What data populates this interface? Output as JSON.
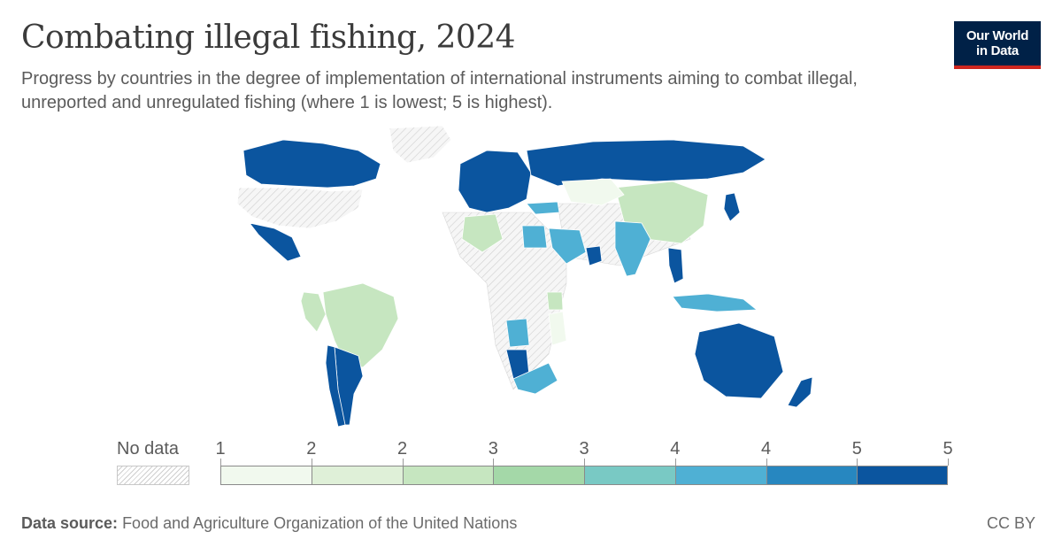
{
  "title": "Combating illegal fishing, 2024",
  "subtitle": "Progress by countries in the degree of implementation of international instruments aiming to combat illegal, unreported and unregulated fishing (where 1 is lowest; 5 is highest).",
  "logo": {
    "line1": "Our World",
    "line2": "in Data",
    "bg_color": "#002147",
    "accent_color": "#ce261e"
  },
  "legend": {
    "no_data_label": "No data",
    "tick_labels": [
      "1",
      "2",
      "2",
      "3",
      "3",
      "4",
      "4",
      "5",
      "5"
    ],
    "bins": [
      {
        "color": "#f1f9ee"
      },
      {
        "color": "#dff0d8"
      },
      {
        "color": "#c6e6c0"
      },
      {
        "color": "#a4d8a8"
      },
      {
        "color": "#79c9c4"
      },
      {
        "color": "#4fb0d4"
      },
      {
        "color": "#2787c0"
      },
      {
        "color": "#0b559f"
      }
    ]
  },
  "map": {
    "no_data_color": "#f4f4f4",
    "regions": [
      {
        "name": "Canada",
        "level": 5
      },
      {
        "name": "United States",
        "level": null
      },
      {
        "name": "Greenland",
        "level": null
      },
      {
        "name": "Mexico",
        "level": 5
      },
      {
        "name": "Brazil",
        "level": 2
      },
      {
        "name": "Argentina",
        "level": 5
      },
      {
        "name": "Chile",
        "level": 5
      },
      {
        "name": "Peru",
        "level": 2
      },
      {
        "name": "Europe",
        "level": 5
      },
      {
        "name": "Russia",
        "level": 5
      },
      {
        "name": "China",
        "level": 2
      },
      {
        "name": "Kazakhstan",
        "level": 1
      },
      {
        "name": "India",
        "level": 4
      },
      {
        "name": "Thailand",
        "level": 5
      },
      {
        "name": "Indonesia",
        "level": 4
      },
      {
        "name": "Japan",
        "level": 5
      },
      {
        "name": "Australia",
        "level": 5
      },
      {
        "name": "New Zealand",
        "level": 5
      },
      {
        "name": "Algeria",
        "level": 2
      },
      {
        "name": "Egypt",
        "level": 4
      },
      {
        "name": "Saudi Arabia",
        "level": 4
      },
      {
        "name": "Oman",
        "level": 5
      },
      {
        "name": "Turkey",
        "level": 4
      },
      {
        "name": "Angola",
        "level": 4
      },
      {
        "name": "Namibia",
        "level": 5
      },
      {
        "name": "South Africa",
        "level": 4
      },
      {
        "name": "Mozambique",
        "level": 1
      },
      {
        "name": "Tanzania",
        "level": 2
      }
    ]
  },
  "footer": {
    "source_label": "Data source:",
    "source_text": "Food and Agriculture Organization of the United Nations",
    "license": "CC BY"
  }
}
